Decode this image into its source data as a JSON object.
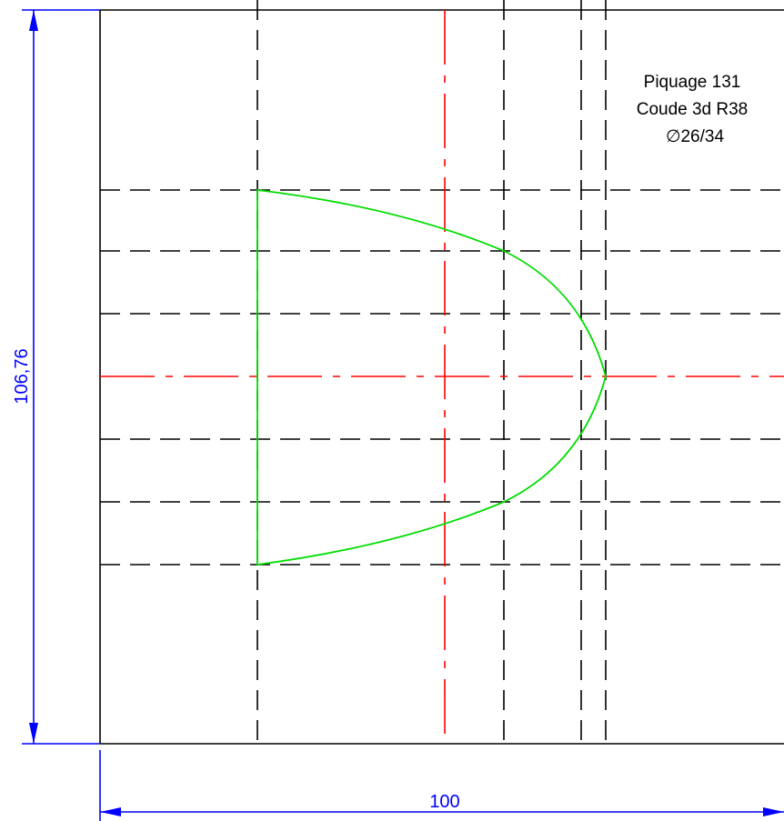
{
  "drawing": {
    "annotation": {
      "line1": "Piquage 131",
      "line2": "Coude 3d R38",
      "line3": "∅26/34"
    },
    "dimensions": {
      "height_label": "106,76",
      "width_label": "100"
    },
    "colors": {
      "outline": "#000000",
      "centerline": "#ff0000",
      "profile": "#00ff00",
      "dimension": "#0000ff"
    }
  }
}
